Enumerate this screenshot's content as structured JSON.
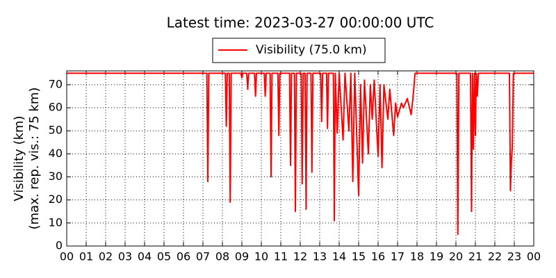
{
  "chart_data": {
    "type": "line",
    "title": "Latest time: 2023-03-27 00:00:00 UTC",
    "ylabel": [
      "Visibility (km)",
      "(max. rep. vis.: 75 km)"
    ],
    "x": [
      0,
      7.2,
      7.25,
      7.3,
      8.15,
      8.2,
      8.25,
      8.35,
      8.4,
      8.45,
      8.95,
      9.0,
      9.05,
      9.25,
      9.3,
      9.35,
      9.65,
      9.7,
      9.75,
      10.15,
      10.2,
      10.25,
      10.45,
      10.5,
      10.55,
      10.85,
      10.9,
      10.95,
      11.45,
      11.5,
      11.55,
      11.7,
      11.75,
      11.8,
      12.05,
      12.1,
      12.15,
      12.25,
      12.3,
      12.35,
      12.55,
      12.6,
      12.65,
      13.05,
      13.1,
      13.15,
      13.35,
      13.4,
      13.45,
      13.7,
      13.75,
      13.8,
      13.9,
      14.0,
      14.2,
      14.3,
      14.5,
      14.6,
      14.7,
      14.8,
      15.0,
      15.1,
      15.2,
      15.3,
      15.5,
      15.6,
      15.7,
      15.8,
      16.0,
      16.1,
      16.2,
      16.3,
      16.5,
      16.6,
      16.8,
      16.9,
      17.0,
      17.2,
      17.3,
      17.5,
      17.7,
      17.8,
      17.9,
      20.05,
      20.1,
      20.15,
      20.75,
      20.8,
      20.85,
      20.9,
      20.95,
      21.0,
      21.05,
      21.1,
      21.15,
      22.75,
      22.8,
      22.85,
      22.9,
      22.95,
      24
    ],
    "series": [
      {
        "name": "Visibility (75.0 km)",
        "color": "#ff0000",
        "values": [
          75,
          75,
          28,
          75,
          75,
          52,
          75,
          75,
          19,
          75,
          75,
          73,
          75,
          75,
          68,
          75,
          75,
          65,
          75,
          75,
          65,
          75,
          75,
          30,
          75,
          75,
          48,
          75,
          75,
          35,
          75,
          75,
          15,
          75,
          75,
          27,
          75,
          75,
          16,
          75,
          75,
          32,
          75,
          75,
          54,
          75,
          75,
          51,
          75,
          75,
          11,
          75,
          49,
          75,
          46,
          75,
          50,
          75,
          28,
          75,
          22,
          70,
          36,
          72,
          40,
          70,
          55,
          72,
          39,
          70,
          34,
          70,
          55,
          68,
          48,
          62,
          56,
          62,
          60,
          64,
          57,
          65,
          75,
          75,
          5,
          75,
          75,
          15,
          75,
          42,
          75,
          48,
          75,
          65,
          75,
          75,
          24,
          37,
          43,
          75,
          75
        ]
      }
    ],
    "xlim": [
      0,
      24
    ],
    "xticks": [
      {
        "value": 0,
        "label": "00"
      },
      {
        "value": 1,
        "label": "01"
      },
      {
        "value": 2,
        "label": "02"
      },
      {
        "value": 3,
        "label": "03"
      },
      {
        "value": 4,
        "label": "04"
      },
      {
        "value": 5,
        "label": "05"
      },
      {
        "value": 6,
        "label": "06"
      },
      {
        "value": 7,
        "label": "07"
      },
      {
        "value": 8,
        "label": "08"
      },
      {
        "value": 9,
        "label": "09"
      },
      {
        "value": 10,
        "label": "10"
      },
      {
        "value": 11,
        "label": "11"
      },
      {
        "value": 12,
        "label": "12"
      },
      {
        "value": 13,
        "label": "13"
      },
      {
        "value": 14,
        "label": "14"
      },
      {
        "value": 15,
        "label": "15"
      },
      {
        "value": 16,
        "label": "16"
      },
      {
        "value": 17,
        "label": "17"
      },
      {
        "value": 18,
        "label": "18"
      },
      {
        "value": 19,
        "label": "19"
      },
      {
        "value": 20,
        "label": "20"
      },
      {
        "value": 21,
        "label": "21"
      },
      {
        "value": 22,
        "label": "22"
      },
      {
        "value": 23,
        "label": "23"
      },
      {
        "value": 24,
        "label": "00"
      }
    ],
    "ylim": [
      0,
      76
    ],
    "yticks": [
      0,
      10,
      20,
      30,
      40,
      50,
      60,
      70
    ],
    "grid": true
  }
}
